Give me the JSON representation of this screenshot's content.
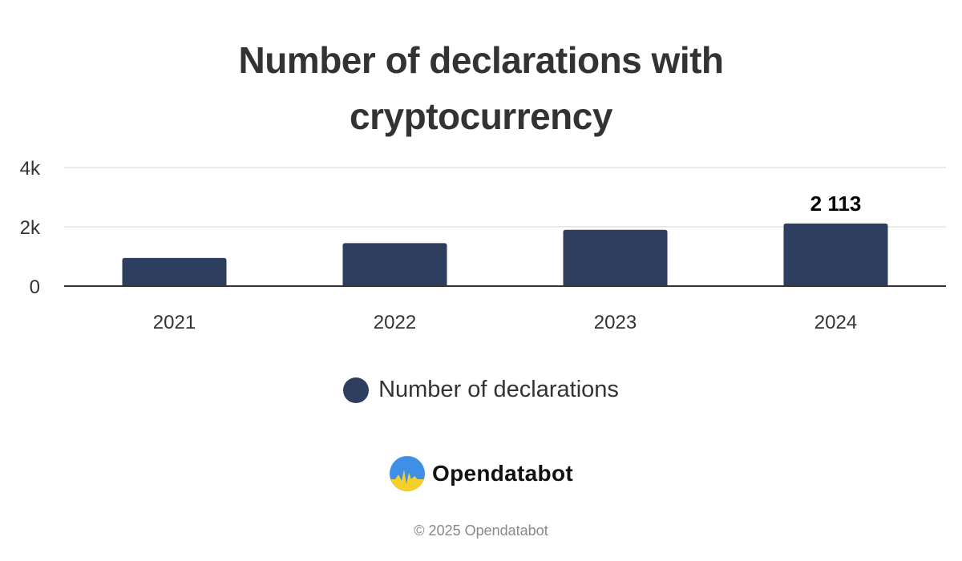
{
  "colors": {
    "bar": "#2e3e5e",
    "axis": "#333333",
    "grid": "#e3e3e3",
    "text": "#333333",
    "logo_top": "#3f8fe6",
    "logo_bottom": "#f5d02a"
  },
  "chart_data": {
    "type": "bar",
    "title": "Number of declarations with cryptocurrency",
    "title_lines": [
      "Number of declarations with",
      "cryptocurrency"
    ],
    "categories": [
      "2021",
      "2022",
      "2023",
      "2024"
    ],
    "series": [
      {
        "name": "Number of declarations",
        "values": [
          950,
          1450,
          1900,
          2113
        ]
      }
    ],
    "data_labels": [
      null,
      null,
      null,
      "2 113"
    ],
    "yticks": [
      {
        "value": 0,
        "label": "0"
      },
      {
        "value": 2000,
        "label": "2k"
      },
      {
        "value": 4000,
        "label": "4k"
      }
    ],
    "ylim": [
      0,
      4000
    ],
    "xlabel": "",
    "ylabel": "",
    "grid": true,
    "legend_position": "bottom-center"
  },
  "legend": {
    "label": "Number of declarations",
    "icon": "circle-marker"
  },
  "brand": {
    "name": "Opendatabot",
    "logo_icon": "opendatabot-logo-icon"
  },
  "footer": {
    "copyright": "© 2025 Opendatabot"
  }
}
